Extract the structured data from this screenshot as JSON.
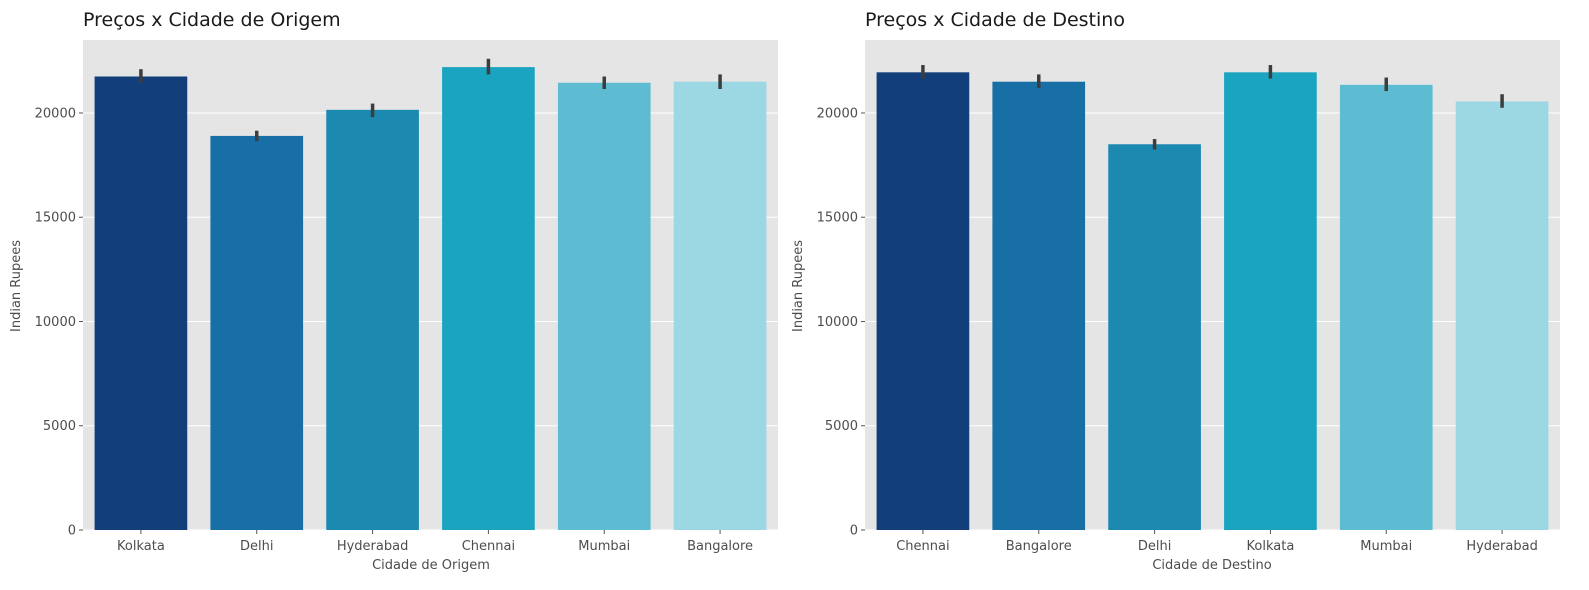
{
  "colors": {
    "plot_background": "#e5e5e5",
    "grid": "#ffffff",
    "error_bar": "#3d3d3d",
    "palette": [
      "#123e7a",
      "#176fa5",
      "#1b89b0",
      "#1ba4c0",
      "#5dbbd2",
      "#9cd8e4"
    ]
  },
  "chart_data": [
    {
      "type": "bar",
      "title": "Preços x Cidade de Origem",
      "xlabel": "Cidade de Origem",
      "ylabel": "Indian Rupees",
      "categories": [
        "Kolkata",
        "Delhi",
        "Hyderabad",
        "Chennai",
        "Mumbai",
        "Bangalore"
      ],
      "values": [
        21750,
        18900,
        20150,
        22200,
        21450,
        21500
      ],
      "error_low": [
        21450,
        18650,
        19800,
        21850,
        21150,
        21150
      ],
      "error_high": [
        22100,
        19150,
        20450,
        22600,
        21750,
        21850
      ],
      "ylim": [
        0,
        23500
      ],
      "yticks": [
        0,
        5000,
        10000,
        15000,
        20000
      ],
      "grid": true
    },
    {
      "type": "bar",
      "title": "Preços x Cidade de Destino",
      "xlabel": "Cidade de Destino",
      "ylabel": "Indian Rupees",
      "categories": [
        "Chennai",
        "Bangalore",
        "Delhi",
        "Kolkata",
        "Mumbai",
        "Hyderabad"
      ],
      "values": [
        21950,
        21500,
        18500,
        21950,
        21350,
        20550
      ],
      "error_low": [
        21650,
        21200,
        18250,
        21650,
        21050,
        20250
      ],
      "error_high": [
        22300,
        21850,
        18750,
        22300,
        21700,
        20900
      ],
      "ylim": [
        0,
        23500
      ],
      "yticks": [
        0,
        5000,
        10000,
        15000,
        20000
      ],
      "grid": true
    }
  ]
}
